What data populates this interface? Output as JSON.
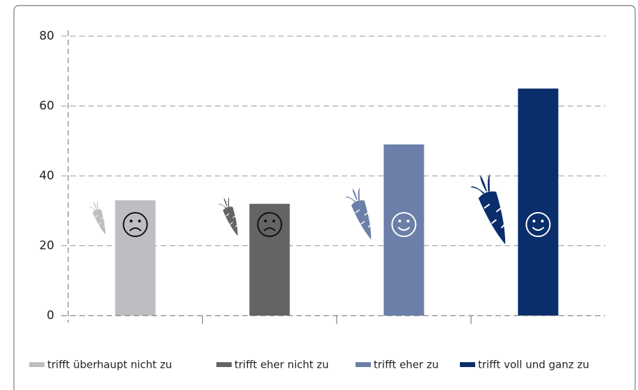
{
  "chart_data": {
    "type": "bar",
    "series": [
      {
        "name": "trifft überhaupt nicht zu",
        "color": "#bdbec2",
        "values": [
          33
        ]
      },
      {
        "name": "trifft eher nicht zu",
        "color": "#646464",
        "values": [
          32
        ]
      },
      {
        "name": "trifft eher zu",
        "color": "#6b7fa8",
        "values": [
          49
        ]
      },
      {
        "name": "trifft voll und ganz zu",
        "color": "#0a2d6b",
        "values": [
          65
        ]
      }
    ],
    "ylim": [
      0,
      80
    ],
    "yticks": [
      0,
      20,
      40,
      60,
      80
    ],
    "grid": true
  }
}
